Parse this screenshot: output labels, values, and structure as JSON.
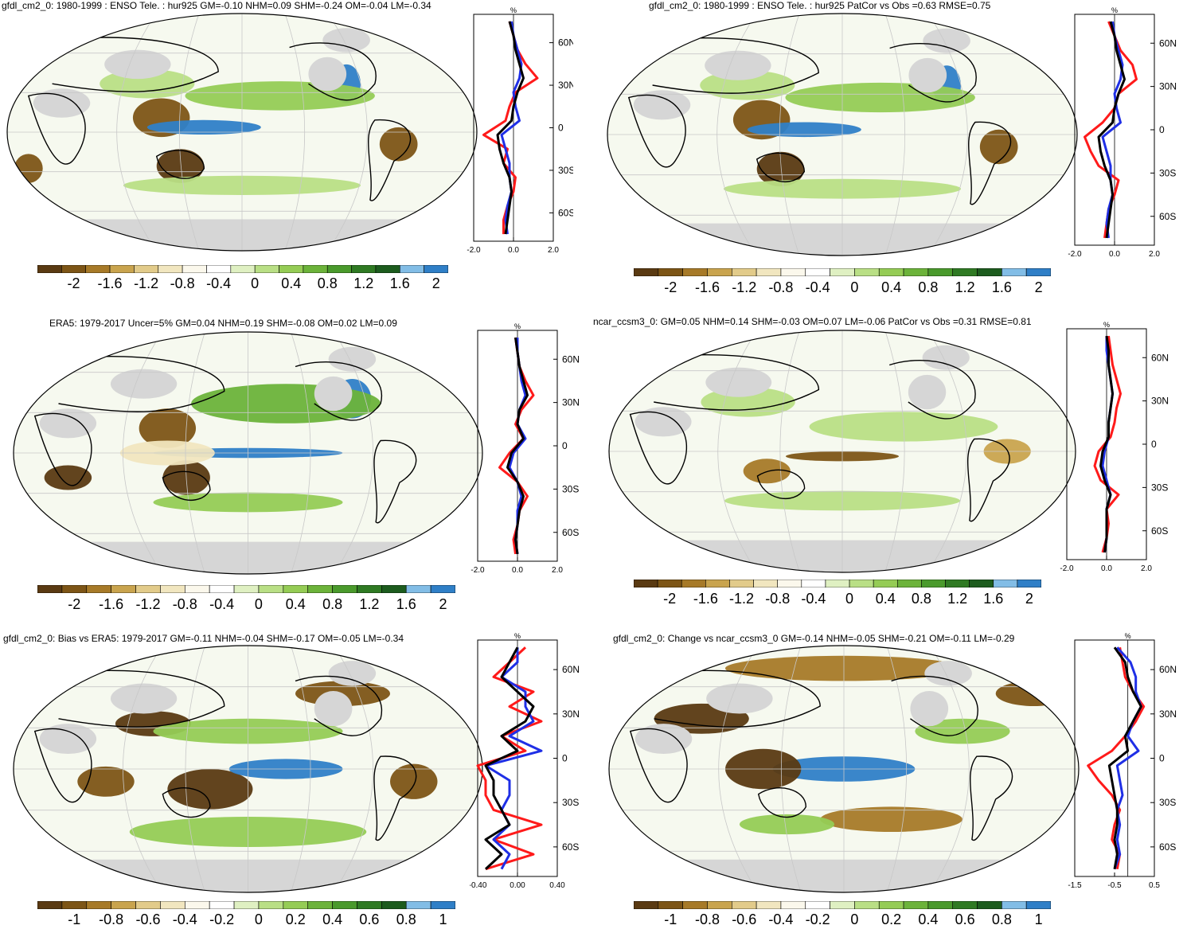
{
  "panels": [
    {
      "id": "p1",
      "title": "gfdl_cm2_0: 1980-1999 : ENSO Tele. : hur925 GM=-0.10 NHM=0.09 SHM=-0.24 OM=-0.04 LM=-0.34",
      "colorbar_labels": [
        "-2",
        "-1.6",
        "-1.2",
        "-0.8",
        "-0.4",
        "0",
        "0.4",
        "0.8",
        "1.2",
        "1.6",
        "2"
      ],
      "side": {
        "unit": "%",
        "xticks": [
          "-2.0",
          "0.0",
          "2.0"
        ],
        "yticks": [
          "60N",
          "30N",
          "0",
          "30S",
          "60S"
        ]
      }
    },
    {
      "id": "p2",
      "title": "gfdl_cm2_0: 1980-1999 : ENSO Tele. : hur925 PatCor vs Obs =0.63 RMSE=0.75",
      "colorbar_labels": [
        "-2",
        "-1.6",
        "-1.2",
        "-0.8",
        "-0.4",
        "0",
        "0.4",
        "0.8",
        "1.2",
        "1.6",
        "2"
      ],
      "side": {
        "unit": "%",
        "xticks": [
          "-2.0",
          "0.0",
          "2.0"
        ],
        "yticks": [
          "60N",
          "30N",
          "0",
          "30S",
          "60S"
        ]
      }
    },
    {
      "id": "p3",
      "title": "ERA5: 1979-2017 Uncer=5% GM=0.04 NHM=0.19 SHM=-0.08 OM=0.02 LM=0.09",
      "colorbar_labels": [
        "-2",
        "-1.6",
        "-1.2",
        "-0.8",
        "-0.4",
        "0",
        "0.4",
        "0.8",
        "1.2",
        "1.6",
        "2"
      ],
      "side": {
        "unit": "%",
        "xticks": [
          "-2.0",
          "0.0",
          "2.0"
        ],
        "yticks": [
          "60N",
          "30N",
          "0",
          "30S",
          "60S"
        ]
      }
    },
    {
      "id": "p4",
      "title": "ncar_ccsm3_0: GM=0.05 NHM=0.14 SHM=-0.03 OM=0.07 LM=-0.06 PatCor vs Obs =0.31 RMSE=0.81",
      "colorbar_labels": [
        "-2",
        "-1.6",
        "-1.2",
        "-0.8",
        "-0.4",
        "0",
        "0.4",
        "0.8",
        "1.2",
        "1.6",
        "2"
      ],
      "side": {
        "unit": "%",
        "xticks": [
          "-2.0",
          "0.0",
          "2.0"
        ],
        "yticks": [
          "60N",
          "30N",
          "0",
          "30S",
          "60S"
        ]
      }
    },
    {
      "id": "p5",
      "title": "gfdl_cm2_0: Bias vs ERA5: 1979-2017 GM=-0.11 NHM=-0.04 SHM=-0.17 OM=-0.05 LM=-0.34",
      "colorbar_labels": [
        "-1",
        "-0.8",
        "-0.6",
        "-0.4",
        "-0.2",
        "0",
        "0.2",
        "0.4",
        "0.6",
        "0.8",
        "1"
      ],
      "side": {
        "unit": "%",
        "xticks": [
          "-0.40",
          "0.00",
          "0.40"
        ],
        "yticks": [
          "60N",
          "30N",
          "0",
          "30S",
          "60S"
        ]
      }
    },
    {
      "id": "p6",
      "title": "gfdl_cm2_0: Change vs ncar_ccsm3_0 GM=-0.14 NHM=-0.05 SHM=-0.21 OM=-0.11 LM=-0.29",
      "colorbar_labels": [
        "-1",
        "-0.8",
        "-0.6",
        "-0.4",
        "-0.2",
        "0",
        "0.2",
        "0.4",
        "0.6",
        "0.8",
        "1"
      ],
      "side": {
        "unit": "%",
        "xticks": [
          "-1.5",
          "-0.5",
          "0.5"
        ],
        "yticks": [
          "60N",
          "30N",
          "0",
          "30S",
          "60S"
        ]
      }
    }
  ],
  "colors": {
    "colorbar": [
      "#5a3a12",
      "#7d5516",
      "#a77a28",
      "#c9a44e",
      "#e2cb8a",
      "#f1e6bf",
      "#fbf8ec",
      "#ffffff",
      "#dff0c2",
      "#b9df85",
      "#95cc55",
      "#6cb33a",
      "#4a9a2c",
      "#2f7a23",
      "#1d5c1e",
      "#82bde6",
      "#2f7fc7"
    ],
    "ocean_bg": "#f6f9ef",
    "land_missing": "#d6d6d6",
    "obs_line": "#000000",
    "model_line": "#ff1a1a",
    "model2_line": "#1f2fe6"
  },
  "chart_data": [
    {
      "type": "line",
      "title": "gfdl_cm2_0: 1980-1999 : ENSO Tele. : hur925 GM=-0.10 NHM=0.09 SHM=-0.24 OM=-0.04 LM=-0.34",
      "ylabel": "",
      "xlabel": "%",
      "xlim": [
        -2.0,
        2.0
      ],
      "ylim": [
        -80,
        80
      ],
      "y": [
        -75,
        -65,
        -55,
        -45,
        -35,
        -25,
        -15,
        -5,
        5,
        15,
        25,
        35,
        45,
        55,
        65,
        75
      ],
      "series": [
        {
          "values": [
            -0.5,
            -0.5,
            -0.3,
            0.0,
            0.1,
            -0.5,
            -0.3,
            -1.5,
            -0.4,
            -0.2,
            0.1,
            1.2,
            0.6,
            0.2,
            0.0,
            -0.2
          ]
        },
        {
          "values": [
            -0.3,
            -0.4,
            -0.3,
            -0.1,
            -0.2,
            -0.2,
            -0.4,
            -0.6,
            0.3,
            0.1,
            0.0,
            0.3,
            0.4,
            0.2,
            0.0,
            -0.1
          ]
        },
        {
          "values": [
            -0.4,
            -0.3,
            -0.2,
            -0.1,
            -0.2,
            -0.5,
            -0.7,
            -0.8,
            -0.1,
            0.0,
            0.2,
            0.5,
            0.3,
            0.1,
            0.0,
            -0.2
          ]
        }
      ]
    },
    {
      "type": "line",
      "title": "gfdl_cm2_0: 1980-1999 : ENSO Tele. : hur925 PatCor vs Obs =0.63 RMSE=0.75",
      "xlabel": "%",
      "xlim": [
        -2.0,
        2.0
      ],
      "ylim": [
        -80,
        80
      ],
      "y": [
        -75,
        -65,
        -55,
        -45,
        -35,
        -25,
        -15,
        -5,
        5,
        15,
        25,
        35,
        45,
        55,
        65,
        75
      ],
      "series": [
        {
          "values": [
            -0.5,
            -0.4,
            -0.3,
            0.0,
            0.2,
            -0.8,
            -1.2,
            -1.5,
            -0.6,
            0.0,
            0.2,
            1.1,
            0.9,
            0.3,
            0.0,
            -0.3
          ]
        },
        {
          "values": [
            -0.3,
            -0.4,
            -0.3,
            -0.1,
            -0.2,
            -0.2,
            -0.4,
            -0.6,
            0.3,
            0.1,
            0.0,
            0.3,
            0.4,
            0.2,
            0.0,
            -0.1
          ]
        },
        {
          "values": [
            -0.4,
            -0.3,
            -0.2,
            -0.1,
            -0.2,
            -0.5,
            -0.7,
            -0.8,
            -0.1,
            0.0,
            0.2,
            0.5,
            0.3,
            0.1,
            0.0,
            -0.2
          ]
        }
      ]
    },
    {
      "type": "line",
      "title": "ERA5: 1979-2017 Uncer=5% GM=0.04 NHM=0.19 SHM=-0.08 OM=0.02 LM=0.09",
      "xlabel": "%",
      "xlim": [
        -2.0,
        2.0
      ],
      "ylim": [
        -80,
        80
      ],
      "y": [
        -75,
        -65,
        -55,
        -45,
        -35,
        -25,
        -15,
        -5,
        5,
        15,
        25,
        35,
        45,
        55,
        65,
        75
      ],
      "series": [
        {
          "values": [
            -0.1,
            -0.2,
            0.0,
            0.1,
            0.5,
            0.0,
            -0.9,
            -0.4,
            0.3,
            -0.1,
            0.2,
            0.8,
            0.4,
            0.1,
            0.0,
            -0.1
          ]
        },
        {
          "values": [
            0.0,
            -0.1,
            0.0,
            0.0,
            0.2,
            0.0,
            -0.4,
            -0.2,
            0.4,
            0.0,
            0.1,
            0.4,
            0.2,
            0.1,
            0.0,
            0.0
          ]
        },
        {
          "values": [
            0.0,
            -0.1,
            0.0,
            0.1,
            0.3,
            0.0,
            -0.5,
            -0.3,
            0.3,
            0.0,
            0.1,
            0.5,
            0.3,
            0.1,
            0.0,
            -0.1
          ]
        }
      ]
    },
    {
      "type": "line",
      "title": "ncar_ccsm3_0: GM=0.05 NHM=0.14 SHM=-0.03 OM=0.07 LM=-0.06 PatCor vs Obs =0.31 RMSE=0.81",
      "xlabel": "%",
      "xlim": [
        -2.0,
        2.0
      ],
      "ylim": [
        -80,
        80
      ],
      "y": [
        -75,
        -65,
        -55,
        -45,
        -35,
        -25,
        -15,
        -5,
        5,
        15,
        25,
        35,
        45,
        55,
        65,
        75
      ],
      "series": [
        {
          "values": [
            -0.2,
            0.0,
            0.1,
            0.0,
            0.6,
            -0.3,
            -0.6,
            -0.4,
            0.2,
            0.4,
            0.5,
            0.7,
            0.5,
            0.3,
            0.2,
            0.1
          ]
        },
        {
          "values": [
            -0.1,
            0.0,
            0.0,
            0.0,
            0.2,
            0.0,
            -0.2,
            -0.1,
            0.1,
            0.1,
            0.2,
            0.3,
            0.2,
            0.1,
            0.0,
            0.0
          ]
        },
        {
          "values": [
            -0.1,
            0.0,
            0.0,
            0.0,
            0.2,
            -0.1,
            -0.3,
            -0.2,
            0.1,
            0.1,
            0.2,
            0.3,
            0.2,
            0.1,
            0.1,
            0.0
          ]
        }
      ]
    },
    {
      "type": "line",
      "title": "gfdl_cm2_0: Bias vs ERA5: 1979-2017 GM=-0.11 NHM=-0.04 SHM=-0.17 OM=-0.05 LM=-0.34",
      "xlabel": "%",
      "xlim": [
        -0.5,
        0.5
      ],
      "ylim": [
        -80,
        80
      ],
      "y": [
        -75,
        -65,
        -55,
        -45,
        -35,
        -25,
        -15,
        -5,
        5,
        15,
        25,
        35,
        45,
        55,
        65,
        75
      ],
      "series": [
        {
          "values": [
            -0.4,
            0.2,
            -0.3,
            0.3,
            -0.3,
            -0.4,
            -0.4,
            -0.5,
            0.1,
            -0.2,
            0.3,
            -0.1,
            0.2,
            -0.3,
            -0.1,
            0.1
          ]
        },
        {
          "values": [
            -0.2,
            -0.1,
            -0.3,
            -0.1,
            -0.2,
            -0.1,
            -0.1,
            -0.4,
            0.3,
            -0.1,
            0.2,
            0.1,
            0.1,
            -0.2,
            0.0,
            0.0
          ]
        },
        {
          "values": [
            -0.4,
            -0.2,
            -0.4,
            -0.1,
            -0.2,
            -0.3,
            -0.3,
            -0.4,
            0.0,
            -0.2,
            0.1,
            0.2,
            0.0,
            -0.2,
            -0.1,
            0.0
          ]
        }
      ]
    },
    {
      "type": "line",
      "title": "gfdl_cm2_0: Change vs ncar_ccsm3_0 GM=-0.14 NHM=-0.05 SHM=-0.21 OM=-0.11 LM=-0.29",
      "xlabel": "%",
      "xlim": [
        -2.0,
        1.0
      ],
      "ylim": [
        -80,
        80
      ],
      "y": [
        -75,
        -65,
        -55,
        -45,
        -35,
        -25,
        -15,
        -5,
        5,
        15,
        25,
        35,
        45,
        55,
        65,
        75
      ],
      "series": [
        {
          "values": [
            -0.4,
            -0.3,
            -0.6,
            -0.5,
            -0.3,
            -0.6,
            -1.1,
            -1.5,
            -0.6,
            -0.1,
            0.3,
            0.6,
            0.2,
            -0.1,
            -0.2,
            -0.3
          ]
        },
        {
          "values": [
            -0.5,
            -0.3,
            -0.4,
            -0.3,
            -0.4,
            -0.2,
            -0.3,
            -0.4,
            0.4,
            0.0,
            0.2,
            0.5,
            0.3,
            0.3,
            0.1,
            -0.4
          ]
        },
        {
          "values": [
            -0.5,
            -0.4,
            -0.5,
            -0.4,
            -0.4,
            -0.5,
            -0.6,
            -0.7,
            0.0,
            -0.1,
            0.2,
            0.5,
            0.2,
            0.0,
            -0.1,
            -0.5
          ]
        }
      ]
    }
  ]
}
